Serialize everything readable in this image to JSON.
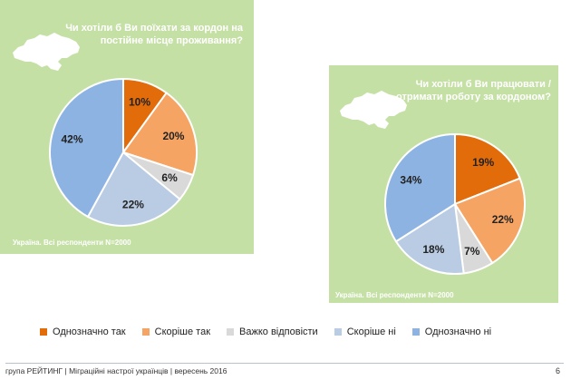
{
  "colors": {
    "panel_bg": "#c5e0a5",
    "series": [
      "#e36c0a",
      "#f5a463",
      "#d9d9d9",
      "#b9cce4",
      "#8db3e2"
    ]
  },
  "chart_data": [
    {
      "type": "pie",
      "title": "Чи хотіли б Ви поїхати за кордон на постійне місце проживання?",
      "note": "Україна. Всі респонденти N=2000",
      "categories": [
        "Однозначно так",
        "Скоріше так",
        "Важко відповісти",
        "Скоріше ні",
        "Однозначно ні"
      ],
      "values": [
        10,
        20,
        6,
        22,
        42
      ],
      "labels": [
        "10%",
        "20%",
        "6%",
        "22%",
        "42%"
      ]
    },
    {
      "type": "pie",
      "title": "Чи хотіли б Ви працювати / отримати роботу за кордоном?",
      "note": "Україна. Всі респонденти N=2000",
      "categories": [
        "Однозначно так",
        "Скоріше так",
        "Важко відповісти",
        "Скоріше ні",
        "Однозначно ні"
      ],
      "values": [
        19,
        22,
        7,
        18,
        34
      ],
      "labels": [
        "19%",
        "22%",
        "7%",
        "18%",
        "34%"
      ]
    }
  ],
  "legend": [
    "Однозначно так",
    "Скоріше так",
    "Важко відповісти",
    "Скоріше ні",
    "Однозначно ні"
  ],
  "footer": {
    "text": "група РЕЙТИНГ | Міграційні настрої українців | вересень 2016",
    "page": "6"
  }
}
